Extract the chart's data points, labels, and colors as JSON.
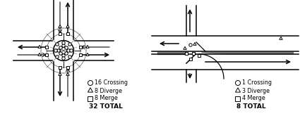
{
  "left_legend": {
    "circle": "16 Crossing",
    "triangle": "8 Diverge",
    "square": "8 Merge",
    "total": "32 TOTAL"
  },
  "right_legend": {
    "circle": "1 Crossing",
    "triangle": "3 Diverge",
    "square": "4 Merge",
    "total": "8 TOTAL"
  },
  "lw": 1.1,
  "marker_size": 2.2,
  "font_size_legend": 5.8,
  "font_size_total": 6.5
}
